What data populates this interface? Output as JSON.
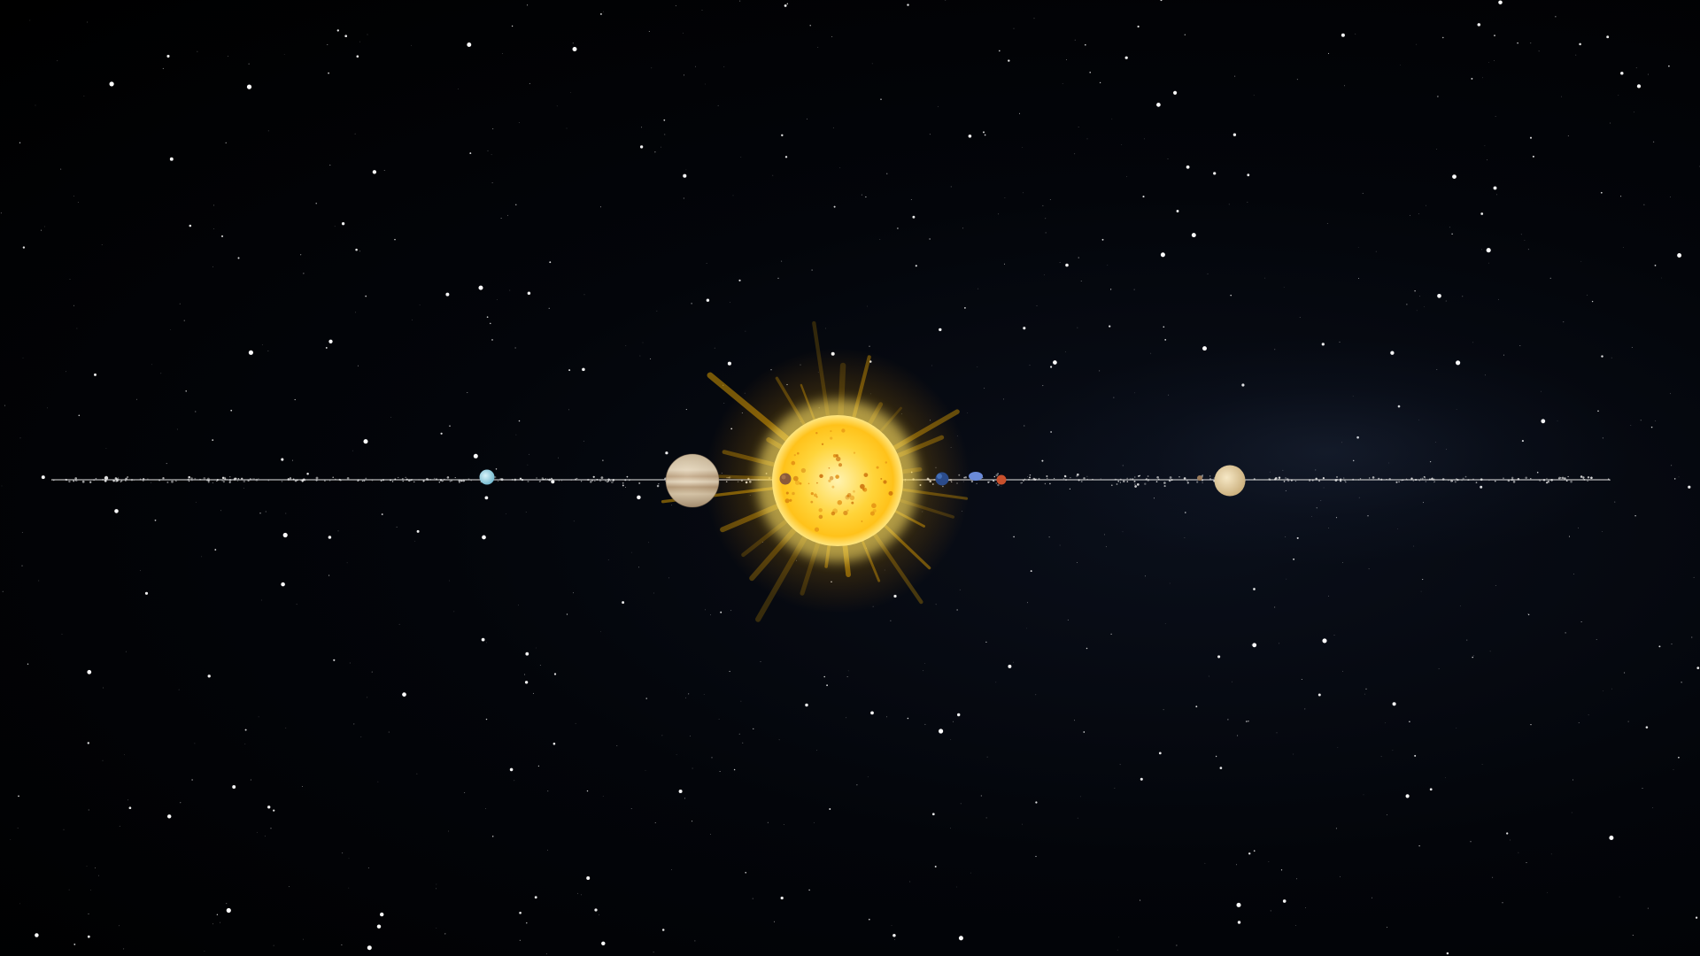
{
  "scene": {
    "background_color": "#000000",
    "star_color": "#ffffff"
  },
  "sun": {
    "core_color": "#fff6c8",
    "glow_color": "#ffd23a",
    "corona_color": "#ffb800"
  },
  "planets": [
    {
      "key": "neptune",
      "color": "#a8dcec"
    },
    {
      "key": "jupiter",
      "color": "#d6c3a5"
    },
    {
      "key": "mercury",
      "color": "#8a5a3a"
    },
    {
      "key": "earth",
      "color": "#2b4b8a"
    },
    {
      "key": "venus",
      "color": "#5a7ad0"
    },
    {
      "key": "mars",
      "color": "#c8502c"
    },
    {
      "key": "saturn",
      "color": "#e8d4a8"
    }
  ],
  "orbit_line_color": "#d8d8d8"
}
